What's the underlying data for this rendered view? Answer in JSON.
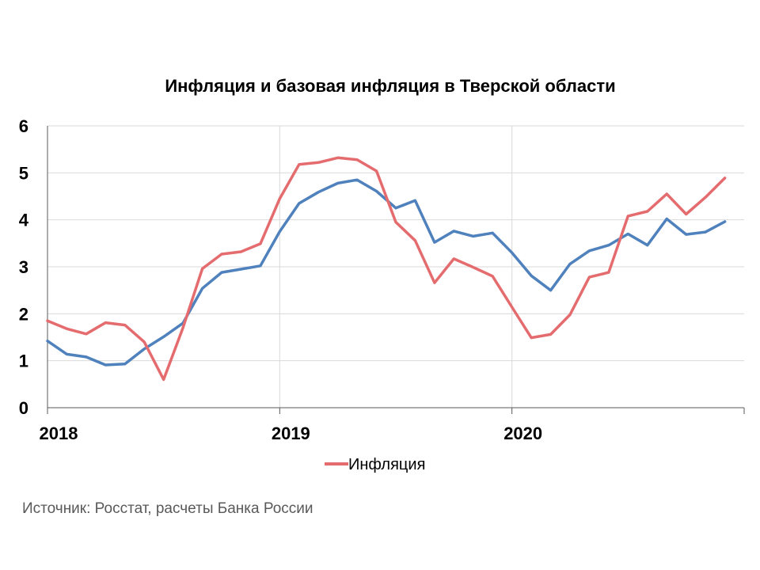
{
  "chart_data": {
    "type": "line",
    "title": "Инфляция и базовая инфляция в Тверской области",
    "xlabel": "",
    "ylabel": "",
    "ylim": [
      0,
      6
    ],
    "yticks": [
      0,
      1,
      2,
      3,
      4,
      5,
      6
    ],
    "x": [
      "2018-01",
      "2018-02",
      "2018-03",
      "2018-04",
      "2018-05",
      "2018-06",
      "2018-07",
      "2018-08",
      "2018-09",
      "2018-10",
      "2018-11",
      "2018-12",
      "2019-01",
      "2019-02",
      "2019-03",
      "2019-04",
      "2019-05",
      "2019-06",
      "2019-07",
      "2019-08",
      "2019-09",
      "2019-10",
      "2019-11",
      "2019-12",
      "2020-01",
      "2020-02",
      "2020-03",
      "2020-04",
      "2020-05",
      "2020-06",
      "2020-07",
      "2020-08",
      "2020-09",
      "2020-10",
      "2020-11",
      "2020-12"
    ],
    "xticks": [
      {
        "x": "2018-01",
        "label": "2018"
      },
      {
        "x": "2019-01",
        "label": "2019"
      },
      {
        "x": "2020-01",
        "label": "2020"
      }
    ],
    "grid": true,
    "legend_position": "bottom-center",
    "series": [
      {
        "name": "Инфляция",
        "color": "#E46C6E",
        "values": [
          1.85,
          1.68,
          1.57,
          1.81,
          1.76,
          1.4,
          0.6,
          1.7,
          2.96,
          3.27,
          3.32,
          3.49,
          4.45,
          5.18,
          5.22,
          5.32,
          5.28,
          5.04,
          3.95,
          3.56,
          2.66,
          3.17,
          2.99,
          2.8,
          2.14,
          1.49,
          1.56,
          1.98,
          2.78,
          2.88,
          4.08,
          4.18,
          4.55,
          4.12,
          4.48,
          4.89
        ]
      },
      {
        "color": "#4F81BD",
        "values": [
          1.42,
          1.14,
          1.08,
          0.91,
          0.93,
          1.25,
          1.51,
          1.8,
          2.54,
          2.88,
          2.95,
          3.02,
          3.75,
          4.35,
          4.59,
          4.78,
          4.85,
          4.61,
          4.25,
          4.41,
          3.52,
          3.76,
          3.65,
          3.72,
          3.3,
          2.81,
          2.5,
          3.06,
          3.34,
          3.46,
          3.7,
          3.46,
          4.02,
          3.69,
          3.74,
          3.96
        ]
      }
    ]
  },
  "source_note": "Источник: Росстат, расчеты Банка России"
}
